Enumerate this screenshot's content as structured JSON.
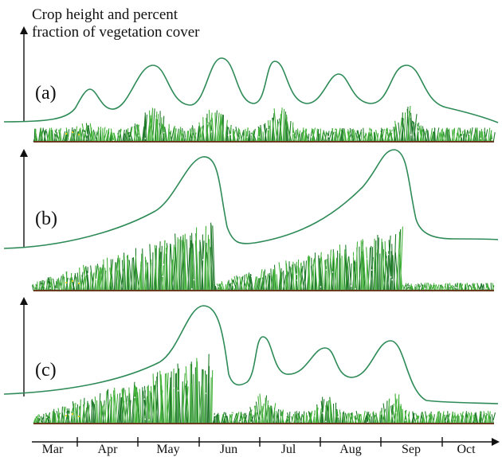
{
  "figure": {
    "y_axis_label": [
      "Crop height and percent",
      "fraction of vegetation cover"
    ],
    "panels": [
      {
        "label": "(a)"
      },
      {
        "label": "(b)"
      },
      {
        "label": "(c)"
      }
    ],
    "months": [
      "Mar",
      "Apr",
      "May",
      "Jun",
      "Jul",
      "Aug",
      "Sep",
      "Oct"
    ]
  }
}
